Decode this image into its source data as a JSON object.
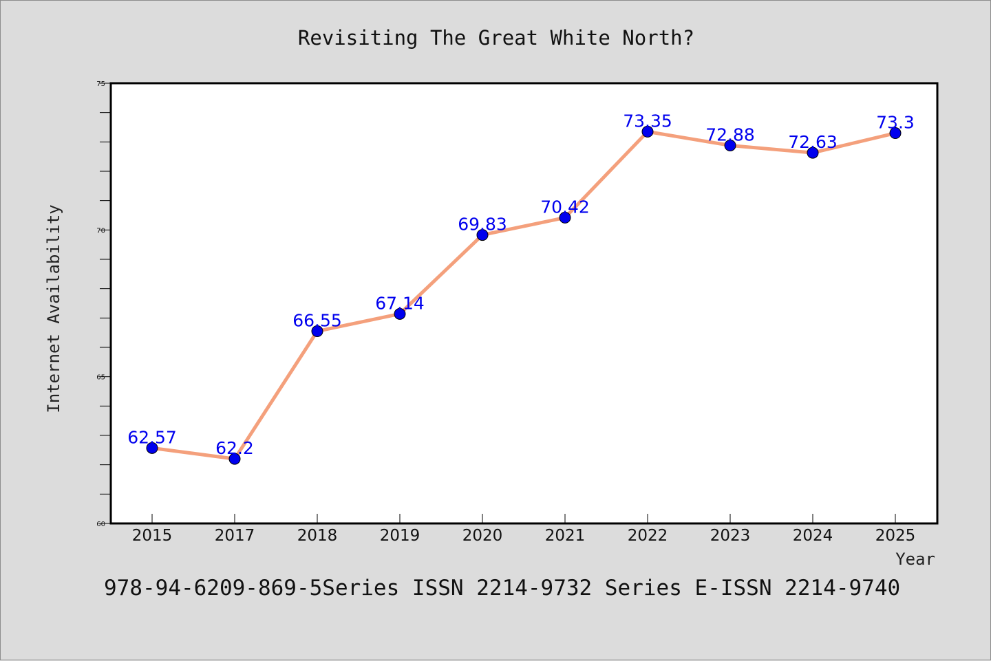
{
  "chart_data": {
    "type": "line",
    "title": "Revisiting The Great White North?",
    "xlabel": "Year",
    "ylabel": "Internet Availability",
    "categories": [
      "2015",
      "2017",
      "2018",
      "2019",
      "2020",
      "2021",
      "2022",
      "2023",
      "2024",
      "2025"
    ],
    "series": [
      {
        "values": [
          62.57,
          62.2,
          66.55,
          67.14,
          69.83,
          70.42,
          73.35,
          72.88,
          72.63,
          73.3
        ],
        "labels": [
          "62.57",
          "62.2",
          "66.55",
          "67.14",
          "69.83",
          "70.42",
          "73.35",
          "72.88",
          "72.63",
          "73.3"
        ],
        "line_color": "#f4a07c",
        "marker_color": "#0000ee"
      }
    ],
    "ylim": [
      60,
      75
    ],
    "yticks": [
      "60",
      "65",
      "70",
      "75"
    ],
    "grid": false,
    "legend": "none"
  },
  "footnote": "978-94-6209-869-5Series ISSN 2214-9732 Series E-ISSN 2214-9740",
  "colors": {
    "background": "#dcdcdc",
    "plot_background": "#ffffff",
    "label_color": "#0000ee"
  }
}
